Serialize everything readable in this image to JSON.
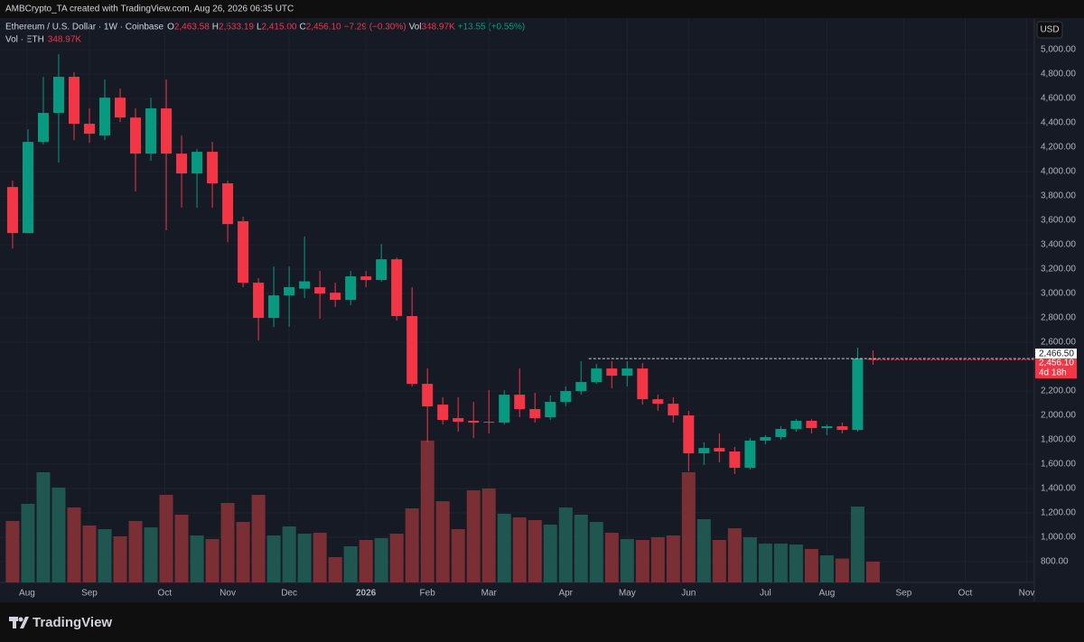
{
  "header": {
    "attribution": "AMBCrypto_TA created with TradingView.com, Aug 26, 2026 06:35 UTC",
    "symbol": "Ethereum / U.S. Dollar · 1W · Coinbase",
    "ohlc": [
      {
        "key": "O",
        "value": "2,463.58"
      },
      {
        "key": "H",
        "value": "2,533.19"
      },
      {
        "key": "L",
        "value": "2,415.00"
      },
      {
        "key": "C",
        "value": "2,456.10"
      }
    ],
    "change": "−7.29 (−0.30%)",
    "vol_key": "Vol",
    "vol_value": "348.97K",
    "vol_change": "+13.55 (+0.55%)",
    "vol_series": "Vol · ETH",
    "vol_series_value": "348.97K",
    "currency": "USD",
    "logo": "TradingView"
  },
  "chart_data": {
    "type": "candlestick",
    "up_color": "#089981",
    "down_color": "#f23645",
    "grid": true,
    "open": [
      3874,
      3496,
      4244,
      4482,
      4778,
      4393,
      4296,
      4607,
      4444,
      4148,
      4519,
      4148,
      3985,
      4163,
      3904,
      3593,
      3089,
      2800,
      2985,
      3040,
      3052,
      3007,
      2948,
      3141,
      3111,
      3281,
      2815,
      2259,
      2089,
      1978,
      1956,
      1948,
      1941,
      2170,
      2052,
      1985,
      2111,
      2200,
      2274,
      2385,
      2326,
      2385,
      2133,
      2096,
      2000,
      1689,
      1733,
      1704,
      1570,
      1793,
      1822,
      1889,
      1956,
      1896,
      1911,
      1881,
      2463.58
    ],
    "high": [
      3926,
      4348,
      4778,
      4963,
      4815,
      4519,
      4756,
      4681,
      4519,
      4607,
      4756,
      4296,
      4185,
      4244,
      3926,
      3630,
      3126,
      3222,
      3222,
      3467,
      3185,
      3089,
      3185,
      3185,
      3407,
      3296,
      3052,
      2385,
      2148,
      2148,
      2111,
      2207,
      2207,
      2385,
      2185,
      2163,
      2237,
      2444,
      2422,
      2444,
      2444,
      2430,
      2170,
      2148,
      2037,
      1778,
      1852,
      1741,
      1815,
      1837,
      1911,
      1970,
      1970,
      1926,
      1941,
      2556,
      2533.19
    ],
    "low": [
      3370,
      3496,
      4222,
      4074,
      4259,
      4237,
      4259,
      4407,
      3837,
      4089,
      3519,
      3704,
      3704,
      3704,
      3422,
      3052,
      2615,
      2726,
      2726,
      2963,
      2793,
      2889,
      2904,
      3052,
      3096,
      2778,
      2237,
      1778,
      1926,
      1867,
      1815,
      1852,
      1926,
      1985,
      1941,
      1963,
      2074,
      2170,
      2259,
      2222,
      2237,
      2089,
      2037,
      1941,
      1541,
      1593,
      1615,
      1519,
      1556,
      1763,
      1800,
      1867,
      1852,
      1837,
      1852,
      1867,
      2415
    ],
    "close": [
      3496,
      4244,
      4482,
      4778,
      4393,
      4311,
      4607,
      4444,
      4148,
      4519,
      4148,
      3985,
      4163,
      3904,
      3570,
      3089,
      2800,
      2985,
      3052,
      3100,
      3000,
      2948,
      3141,
      3111,
      3281,
      2815,
      2259,
      2074,
      1963,
      1948,
      1941,
      1941,
      2170,
      2052,
      1978,
      2111,
      2200,
      2274,
      2385,
      2326,
      2385,
      2133,
      2096,
      2000,
      1689,
      1733,
      1704,
      1570,
      1793,
      1822,
      1889,
      1956,
      1896,
      1911,
      1881,
      2467,
      2456.1
    ],
    "volume": [
      1032000,
      1320000,
      1851000,
      1593000,
      1259000,
      956000,
      895000,
      774000,
      1032000,
      925000,
      1471000,
      1138000,
      789000,
      728000,
      1335000,
      1016000,
      1471000,
      789000,
      941000,
      819000,
      834000,
      425000,
      607000,
      713000,
      743000,
      819000,
      1244000,
      2382000,
      1365000,
      895000,
      1547000,
      1578000,
      1153000,
      1092000,
      1047000,
      971000,
      1259000,
      1138000,
      1016000,
      834000,
      728000,
      713000,
      759000,
      789000,
      1851000,
      1062000,
      713000,
      910000,
      759000,
      652000,
      652000,
      637000,
      561000,
      455000,
      400000,
      1274000,
      348970
    ],
    "ylim": [
      630,
      5260
    ],
    "xlim": [
      -0.82,
      66.5
    ],
    "yticks": [
      {
        "value": 800,
        "label": "800.00"
      },
      {
        "value": 1000,
        "label": "1,000.00"
      },
      {
        "value": 1200,
        "label": "1,200.00"
      },
      {
        "value": 1400,
        "label": "1,400.00"
      },
      {
        "value": 1600,
        "label": "1,600.00"
      },
      {
        "value": 1800,
        "label": "1,800.00"
      },
      {
        "value": 2000,
        "label": "2,000.00"
      },
      {
        "value": 2200,
        "label": "2,200.00"
      },
      {
        "value": 2600,
        "label": "2,600.00"
      },
      {
        "value": 2800,
        "label": "2,800.00"
      },
      {
        "value": 3000,
        "label": "3,000.00"
      },
      {
        "value": 3200,
        "label": "3,200.00"
      },
      {
        "value": 3400,
        "label": "3,400.00"
      },
      {
        "value": 3600,
        "label": "3,600.00"
      },
      {
        "value": 3800,
        "label": "3,800.00"
      },
      {
        "value": 4000,
        "label": "4,000.00"
      },
      {
        "value": 4200,
        "label": "4,200.00"
      },
      {
        "value": 4400,
        "label": "4,400.00"
      },
      {
        "value": 4600,
        "label": "4,600.00"
      },
      {
        "value": 4800,
        "label": "4,800.00"
      },
      {
        "value": 5000,
        "label": "5,000.00"
      }
    ],
    "xticks": [
      {
        "value": 0.94,
        "label": "Aug"
      },
      {
        "value": 5,
        "label": "Sep"
      },
      {
        "value": 9.9,
        "label": "Oct"
      },
      {
        "value": 14,
        "label": "Nov"
      },
      {
        "value": 18,
        "label": "Dec"
      },
      {
        "value": 23,
        "label": "2026"
      },
      {
        "value": 27,
        "label": "Feb"
      },
      {
        "value": 31,
        "label": "Mar"
      },
      {
        "value": 36,
        "label": "Apr"
      },
      {
        "value": 40,
        "label": "May"
      },
      {
        "value": 44,
        "label": "Jun"
      },
      {
        "value": 49,
        "label": "Jul"
      },
      {
        "value": 53,
        "label": "Aug"
      },
      {
        "value": 58,
        "label": "Sep"
      },
      {
        "value": 62,
        "label": "Oct"
      },
      {
        "value": 66,
        "label": "Nov"
      }
    ],
    "price_line": {
      "value": 2466.5,
      "label": "2,466.50"
    },
    "close_label": "2,456.10",
    "countdown": "4d 18h"
  }
}
